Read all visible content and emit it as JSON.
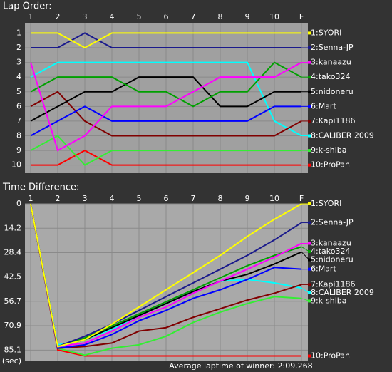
{
  "chart_data": [
    {
      "type": "line",
      "title": "Lap Order:",
      "categories": [
        "1",
        "2",
        "3",
        "4",
        "5",
        "6",
        "7",
        "8",
        "9",
        "10",
        "F"
      ],
      "ylim": [
        0.3,
        10.55
      ],
      "y_inverted": true,
      "yticks": [
        1,
        2,
        3,
        4,
        5,
        6,
        7,
        8,
        9,
        10
      ],
      "grid": true,
      "series": [
        {
          "name": "1:SYORI",
          "color": "#ffff00",
          "values": [
            1,
            1,
            2,
            1,
            1,
            1,
            1,
            1,
            1,
            1,
            1
          ]
        },
        {
          "name": "2:Senna-JP",
          "color": "#1a1a8c",
          "values": [
            2,
            2,
            1,
            2,
            2,
            2,
            2,
            2,
            2,
            2,
            2
          ]
        },
        {
          "name": "3:kanaazu",
          "color": "#ff00ff",
          "values": [
            3,
            9,
            8,
            6,
            6,
            6,
            5,
            4,
            4,
            4,
            3
          ]
        },
        {
          "name": "4:tako324",
          "color": "#00a000",
          "values": [
            5,
            4,
            4,
            4,
            5,
            5,
            6,
            5,
            5,
            3,
            4
          ]
        },
        {
          "name": "5:nidoneru",
          "color": "#000000",
          "values": [
            7,
            6,
            5,
            5,
            4,
            4,
            4,
            6,
            6,
            5,
            5
          ]
        },
        {
          "name": "6:Mart",
          "color": "#0000ff",
          "values": [
            8,
            7,
            6,
            7,
            7,
            7,
            7,
            7,
            7,
            6,
            6
          ]
        },
        {
          "name": "7:Kapi1186",
          "color": "#800000",
          "values": [
            6,
            5,
            7,
            8,
            8,
            8,
            8,
            8,
            8,
            8,
            7
          ]
        },
        {
          "name": "8:CALIBER 2009",
          "color": "#00ffff",
          "values": [
            4,
            3,
            3,
            3,
            3,
            3,
            3,
            3,
            3,
            7,
            8
          ]
        },
        {
          "name": "9:k-shiba",
          "color": "#33ee33",
          "values": [
            9,
            8,
            10,
            9,
            9,
            9,
            9,
            9,
            9,
            9,
            9
          ]
        },
        {
          "name": "10:ProPan",
          "color": "#ff0000",
          "values": [
            10,
            10,
            9,
            10,
            10,
            10,
            10,
            10,
            10,
            10,
            10
          ]
        }
      ]
    },
    {
      "type": "line",
      "title": "Time Difference:",
      "categories": [
        "1",
        "2",
        "3",
        "4",
        "5",
        "6",
        "7",
        "8",
        "9",
        "10",
        "F"
      ],
      "ylim": [
        0,
        91.6
      ],
      "y_inverted": true,
      "y_unit": "(sec)",
      "yticks": [
        0,
        14.2,
        28.4,
        42.5,
        56.7,
        70.9,
        85.1
      ],
      "grid": true,
      "annotation": "Average laptime of winner: 2:09.268",
      "series": [
        {
          "name": "1:SYORI",
          "color": "#ffff00",
          "values": [
            0,
            83,
            79,
            70,
            60,
            50,
            40,
            30,
            19,
            9,
            0
          ]
        },
        {
          "name": "2:Senna-JP",
          "color": "#1a1a8c",
          "values": [
            0,
            83,
            77,
            70,
            62,
            54,
            46,
            38,
            30,
            21,
            11
          ]
        },
        {
          "name": "3:kanaazu",
          "color": "#ff00ff",
          "values": [
            0,
            83,
            81,
            74,
            66,
            60,
            52,
            45,
            38,
            31,
            23
          ]
        },
        {
          "name": "4:tako324",
          "color": "#00a000",
          "values": [
            0,
            83,
            78,
            71,
            64,
            57,
            50,
            43,
            36,
            30,
            25
          ]
        },
        {
          "name": "5:nidoneru",
          "color": "#000000",
          "values": [
            0,
            83,
            79,
            72,
            65,
            58,
            51,
            45,
            41,
            35,
            28
          ]
        },
        {
          "name": "6:Mart",
          "color": "#0000ff",
          "values": [
            0,
            84,
            82,
            76,
            68,
            62,
            55,
            50,
            44,
            37,
            38
          ]
        },
        {
          "name": "7:Kapi1186",
          "color": "#800000",
          "values": [
            0,
            84,
            83,
            81,
            74,
            72,
            66,
            61,
            56,
            52,
            47
          ]
        },
        {
          "name": "8:CALIBER 2009",
          "color": "#00ffff",
          "values": [
            0,
            82,
            79,
            73,
            65,
            58,
            51,
            45,
            44,
            46,
            49
          ]
        },
        {
          "name": "9:k-shiba",
          "color": "#33ee33",
          "values": [
            0,
            84,
            88,
            84,
            82,
            77,
            69,
            63,
            58,
            54,
            55
          ]
        },
        {
          "name": "10:ProPan",
          "color": "#ff0000",
          "values": [
            0,
            85,
            88.5,
            88.5,
            88.5,
            88.5,
            88.5,
            88.5,
            88.5,
            88.5,
            88.5
          ]
        }
      ]
    }
  ]
}
